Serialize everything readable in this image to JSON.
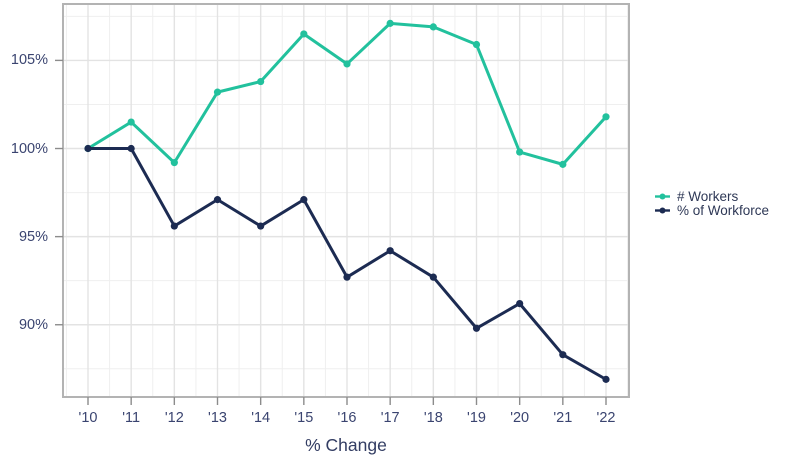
{
  "chart_data": {
    "type": "line",
    "title": "",
    "xlabel": "% Change",
    "ylabel": "",
    "x_categories": [
      "'10",
      "'11",
      "'12",
      "'13",
      "'14",
      "'15",
      "'16",
      "'17",
      "'18",
      "'19",
      "'20",
      "'21",
      "'22"
    ],
    "series": [
      {
        "name": "# Workers",
        "color": "#22c19d",
        "values": [
          100.0,
          101.5,
          99.2,
          103.2,
          103.8,
          106.5,
          104.8,
          107.1,
          106.9,
          105.9,
          99.8,
          99.1,
          101.8
        ]
      },
      {
        "name": "% of Workforce",
        "color": "#1c2b52",
        "values": [
          100.0,
          100.0,
          95.6,
          97.1,
          95.6,
          97.1,
          92.7,
          94.2,
          92.7,
          89.8,
          91.2,
          88.3,
          86.9
        ]
      }
    ],
    "y_ticks": [
      {
        "value": 90,
        "label": "90%"
      },
      {
        "value": 95,
        "label": "95%"
      },
      {
        "value": 100,
        "label": "100%"
      },
      {
        "value": 105,
        "label": "105%"
      }
    ],
    "ylim": [
      85.9,
      108.2
    ],
    "grid": {
      "major": true,
      "minor": true
    },
    "legend_position": "right"
  },
  "colors": {
    "axis_text": "#3a4470",
    "panel_border": "#b3b3b3",
    "tick_mark": "#8c8c8c",
    "grid_major": "#e3e3e3",
    "grid_minor": "#efefef",
    "background": "#ffffff"
  }
}
